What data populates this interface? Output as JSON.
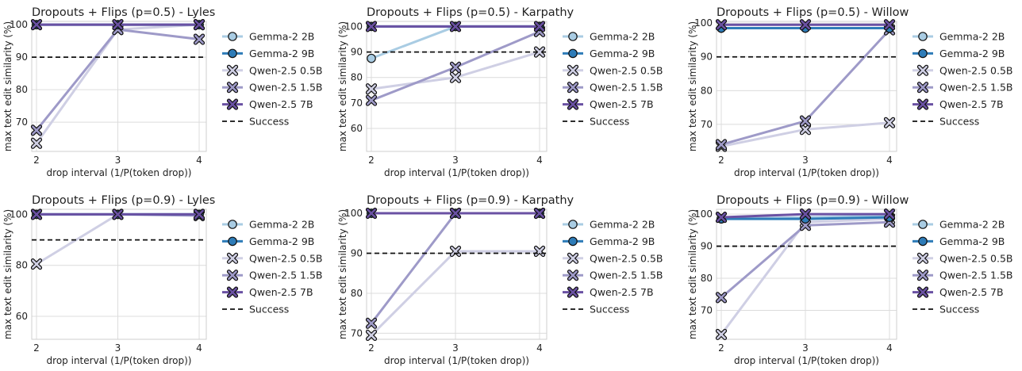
{
  "colors": {
    "gemma2b": "#a9cce3",
    "gemma9b": "#2e7cb8",
    "qwen05": "#cfcfe4",
    "qwen15": "#9e9ac8",
    "qwen7": "#6a51a3",
    "success": "#111111"
  },
  "legend": [
    {
      "key": "gemma2b",
      "label": "Gemma-2 2B",
      "marker": "circle",
      "width": 3
    },
    {
      "key": "gemma9b",
      "label": "Gemma-2 9B",
      "marker": "circle",
      "width": 3
    },
    {
      "key": "qwen05",
      "label": "Qwen-2.5 0.5B",
      "marker": "x",
      "width": 3
    },
    {
      "key": "qwen15",
      "label": "Qwen-2.5 1.5B",
      "marker": "x",
      "width": 3
    },
    {
      "key": "qwen7",
      "label": "Qwen-2.5 7B",
      "marker": "x",
      "width": 3
    },
    {
      "key": "success",
      "label": "Success",
      "marker": "none",
      "dashed": true
    }
  ],
  "chart_data": [
    {
      "type": "line",
      "title": "Dropouts + Flips (p=0.5) - Lyles",
      "xlabel": "drop interval (1/P(token drop))",
      "ylabel": "max text edit similarity (%)",
      "x": [
        2,
        3,
        4
      ],
      "ylim": [
        61,
        101
      ],
      "yticks": [
        70,
        80,
        90,
        100
      ],
      "success": 90,
      "series": [
        {
          "name": "Gemma-2 2B",
          "key": "gemma2b",
          "values": [
            100,
            100,
            100
          ]
        },
        {
          "name": "Gemma-2 9B",
          "key": "gemma9b",
          "values": [
            100,
            100,
            100
          ]
        },
        {
          "name": "Qwen-2.5 0.5B",
          "key": "qwen05",
          "values": [
            63.5,
            98.5,
            100
          ]
        },
        {
          "name": "Qwen-2.5 1.5B",
          "key": "qwen15",
          "values": [
            67.5,
            98.5,
            95.5
          ]
        },
        {
          "name": "Qwen-2.5 7B",
          "key": "qwen7",
          "values": [
            100,
            100,
            100
          ]
        }
      ]
    },
    {
      "type": "line",
      "title": "Dropouts + Flips (p=0.5) - Karpathy",
      "xlabel": "drop interval (1/P(token drop))",
      "ylabel": "max text edit similarity (%)",
      "x": [
        2,
        3,
        4
      ],
      "ylim": [
        51,
        102
      ],
      "yticks": [
        60,
        70,
        80,
        90,
        100
      ],
      "success": 90,
      "series": [
        {
          "name": "Gemma-2 2B",
          "key": "gemma2b",
          "values": [
            87.5,
            100,
            100
          ]
        },
        {
          "name": "Gemma-2 9B",
          "key": "gemma9b",
          "values": [
            100,
            100,
            100
          ]
        },
        {
          "name": "Qwen-2.5 0.5B",
          "key": "qwen05",
          "values": [
            75.5,
            80,
            90
          ]
        },
        {
          "name": "Qwen-2.5 1.5B",
          "key": "qwen15",
          "values": [
            71,
            84,
            98
          ]
        },
        {
          "name": "Qwen-2.5 7B",
          "key": "qwen7",
          "values": [
            100,
            100,
            100
          ]
        }
      ]
    },
    {
      "type": "line",
      "title": "Dropouts + Flips (p=0.5) - Willow",
      "xlabel": "drop interval (1/P(token drop))",
      "ylabel": "max text edit similarity (%)",
      "x": [
        2,
        3,
        4
      ],
      "ylim": [
        62,
        100.5
      ],
      "yticks": [
        70,
        80,
        90,
        100
      ],
      "success": 90,
      "series": [
        {
          "name": "Gemma-2 2B",
          "key": "gemma2b",
          "values": [
            98.5,
            98.5,
            98.5
          ]
        },
        {
          "name": "Gemma-2 9B",
          "key": "gemma9b",
          "values": [
            98.5,
            98.5,
            98.5
          ]
        },
        {
          "name": "Qwen-2.5 0.5B",
          "key": "qwen05",
          "values": [
            63.5,
            68.5,
            70.5
          ]
        },
        {
          "name": "Qwen-2.5 1.5B",
          "key": "qwen15",
          "values": [
            64,
            71,
            98
          ]
        },
        {
          "name": "Qwen-2.5 7B",
          "key": "qwen7",
          "values": [
            99.5,
            99.5,
            99.5
          ]
        }
      ]
    },
    {
      "type": "line",
      "title": "Dropouts + Flips (p=0.9) - Lyles",
      "xlabel": "drop interval (1/P(token drop))",
      "ylabel": "max text edit similarity (%)",
      "x": [
        2,
        3,
        4
      ],
      "ylim": [
        51,
        102
      ],
      "yticks": [
        60,
        80,
        100
      ],
      "success": 90,
      "series": [
        {
          "name": "Gemma-2 2B",
          "key": "gemma2b",
          "values": [
            100,
            100,
            100
          ]
        },
        {
          "name": "Gemma-2 9B",
          "key": "gemma9b",
          "values": [
            100,
            100,
            100
          ]
        },
        {
          "name": "Qwen-2.5 0.5B",
          "key": "qwen05",
          "values": [
            80.5,
            100,
            100
          ]
        },
        {
          "name": "Qwen-2.5 1.5B",
          "key": "qwen15",
          "values": [
            100,
            100,
            99.5
          ]
        },
        {
          "name": "Qwen-2.5 7B",
          "key": "qwen7",
          "values": [
            100,
            100,
            100
          ]
        }
      ]
    },
    {
      "type": "line",
      "title": "Dropouts + Flips (p=0.9) - Karpathy",
      "xlabel": "drop interval (1/P(token drop))",
      "ylabel": "max text edit similarity (%)",
      "x": [
        2,
        3,
        4
      ],
      "ylim": [
        68.5,
        101
      ],
      "yticks": [
        70,
        80,
        90,
        100
      ],
      "success": 90,
      "series": [
        {
          "name": "Gemma-2 2B",
          "key": "gemma2b",
          "values": [
            100,
            100,
            100
          ]
        },
        {
          "name": "Gemma-2 9B",
          "key": "gemma9b",
          "values": [
            100,
            100,
            100
          ]
        },
        {
          "name": "Qwen-2.5 0.5B",
          "key": "qwen05",
          "values": [
            69.5,
            90.5,
            90.5
          ]
        },
        {
          "name": "Qwen-2.5 1.5B",
          "key": "qwen15",
          "values": [
            72.5,
            100,
            100
          ]
        },
        {
          "name": "Qwen-2.5 7B",
          "key": "qwen7",
          "values": [
            100,
            100,
            100
          ]
        }
      ]
    },
    {
      "type": "line",
      "title": "Dropouts + Flips (p=0.9) - Willow",
      "xlabel": "drop interval (1/P(token drop))",
      "ylabel": "max text edit similarity (%)",
      "x": [
        2,
        3,
        4
      ],
      "ylim": [
        61,
        101.5
      ],
      "yticks": [
        70,
        80,
        90,
        100
      ],
      "success": 90,
      "series": [
        {
          "name": "Gemma-2 2B",
          "key": "gemma2b",
          "values": [
            98.5,
            99,
            99.5
          ]
        },
        {
          "name": "Gemma-2 9B",
          "key": "gemma9b",
          "values": [
            98.5,
            98.5,
            99
          ]
        },
        {
          "name": "Qwen-2.5 0.5B",
          "key": "qwen05",
          "values": [
            62.5,
            97.5,
            98.5
          ]
        },
        {
          "name": "Qwen-2.5 1.5B",
          "key": "qwen15",
          "values": [
            74,
            96.5,
            97.5
          ]
        },
        {
          "name": "Qwen-2.5 7B",
          "key": "qwen7",
          "values": [
            99,
            100,
            100
          ]
        }
      ]
    }
  ]
}
